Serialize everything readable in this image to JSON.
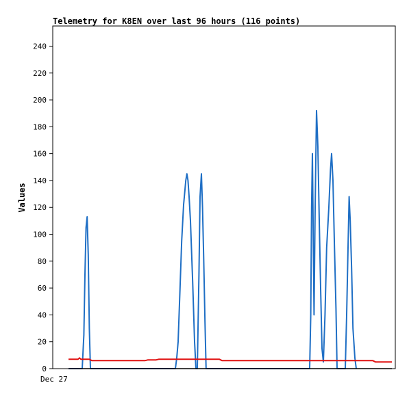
{
  "chart_data": {
    "type": "line",
    "title": "Telemetry for K8EN over last 96 hours (116 points)",
    "ylabel": "Values",
    "xlabel": "",
    "ylim": [
      0,
      255
    ],
    "xlim": [
      0,
      115
    ],
    "yticks": [
      0,
      20,
      40,
      60,
      80,
      100,
      120,
      140,
      160,
      180,
      200,
      220,
      240
    ],
    "xtick_labels": [
      {
        "x": -8,
        "label": "Dec 27"
      }
    ],
    "grid": false,
    "series": [
      {
        "color": "#1f6fc5",
        "points": [
          [
            0,
            0
          ],
          [
            5,
            0
          ],
          [
            5.6,
            25
          ],
          [
            6,
            70
          ],
          [
            6.4,
            105
          ],
          [
            6.8,
            113
          ],
          [
            7.2,
            85
          ],
          [
            7.6,
            30
          ],
          [
            8,
            0
          ],
          [
            39,
            0
          ],
          [
            39.5,
            8
          ],
          [
            40,
            20
          ],
          [
            40.7,
            60
          ],
          [
            41.3,
            95
          ],
          [
            42,
            122
          ],
          [
            42.8,
            140
          ],
          [
            43.2,
            145
          ],
          [
            43.6,
            140
          ],
          [
            44,
            128
          ],
          [
            44.5,
            110
          ],
          [
            45.3,
            65
          ],
          [
            46,
            20
          ],
          [
            46.5,
            0
          ],
          [
            47,
            0
          ],
          [
            47.6,
            70
          ],
          [
            48,
            128
          ],
          [
            48.5,
            145
          ],
          [
            48.9,
            120
          ],
          [
            49.3,
            85
          ],
          [
            49.8,
            35
          ],
          [
            50.2,
            0
          ],
          [
            88,
            0
          ],
          [
            88.4,
            40
          ],
          [
            88.7,
            120
          ],
          [
            89,
            160
          ],
          [
            89.3,
            100
          ],
          [
            89.6,
            40
          ],
          [
            90,
            120
          ],
          [
            90.5,
            192
          ],
          [
            91,
            165
          ],
          [
            91.5,
            110
          ],
          [
            92,
            60
          ],
          [
            92.5,
            15
          ],
          [
            93,
            5
          ],
          [
            93.6,
            40
          ],
          [
            94.2,
            90
          ],
          [
            95,
            120
          ],
          [
            95.6,
            148
          ],
          [
            96,
            160
          ],
          [
            96.5,
            140
          ],
          [
            97,
            95
          ],
          [
            97.6,
            45
          ],
          [
            98,
            0
          ],
          [
            101,
            0
          ],
          [
            101.5,
            40
          ],
          [
            102,
            90
          ],
          [
            102.4,
            128
          ],
          [
            102.8,
            110
          ],
          [
            103.3,
            75
          ],
          [
            103.8,
            30
          ],
          [
            104.5,
            8
          ],
          [
            105,
            0
          ]
        ]
      },
      {
        "color": "#e01010",
        "points": [
          [
            0,
            7
          ],
          [
            3.5,
            7
          ],
          [
            4,
            8
          ],
          [
            4.5,
            7
          ],
          [
            7.5,
            7
          ],
          [
            8.5,
            6
          ],
          [
            28,
            6
          ],
          [
            29,
            6.5
          ],
          [
            32,
            6.5
          ],
          [
            33,
            7
          ],
          [
            55,
            7
          ],
          [
            56,
            6
          ],
          [
            111,
            6
          ],
          [
            112,
            5
          ],
          [
            118,
            5
          ]
        ]
      },
      {
        "color": "#000000",
        "points": [
          [
            0,
            0
          ],
          [
            118,
            0
          ]
        ]
      }
    ]
  }
}
